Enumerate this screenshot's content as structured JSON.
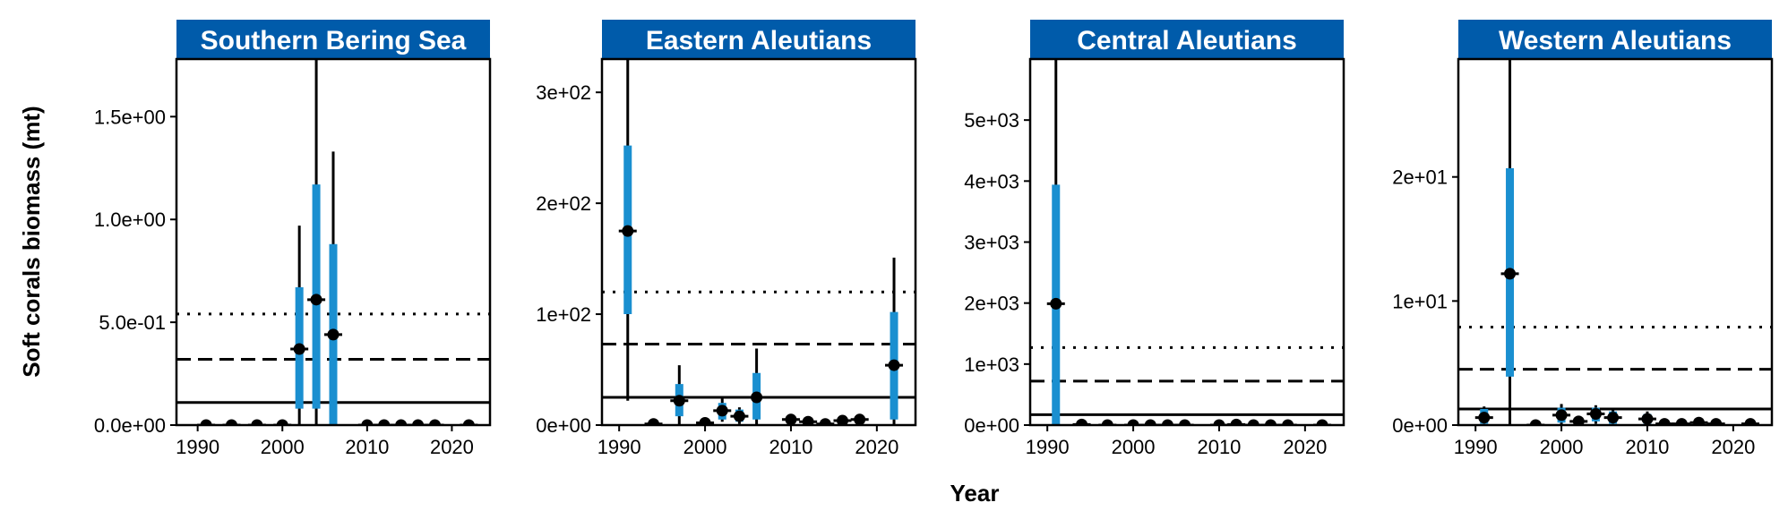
{
  "chart_data": {
    "type": "errorbar",
    "ylabel": "Soft corals biomass (mt)",
    "xlabel": "Year",
    "colors": {
      "strip": "#005BAA",
      "inner_interval": "#1A8FD0",
      "outer_interval": "#000000",
      "point": "#000000"
    },
    "panels": [
      {
        "title": "Southern Bering Sea",
        "xlim": [
          1987.5,
          2024.5
        ],
        "ylim": [
          0,
          1.78
        ],
        "xticks": [
          1990,
          2000,
          2010,
          2020
        ],
        "yticks": [
          0,
          0.5,
          1.0,
          1.5
        ],
        "ytick_labels": [
          "0.0e+00",
          "5.0e-01",
          "1.0e+00",
          "1.5e+00"
        ],
        "hlines": {
          "solid": 0.11,
          "dashed": 0.32,
          "dotted": 0.54
        },
        "points": [
          {
            "x": 1991,
            "y": 0
          },
          {
            "x": 1994,
            "y": 0
          },
          {
            "x": 1997,
            "y": 0
          },
          {
            "x": 2000,
            "y": 0
          },
          {
            "x": 2002,
            "y": 0.37,
            "inner": [
              0.08,
              0.67
            ],
            "outer": [
              0,
              0.97
            ]
          },
          {
            "x": 2004,
            "y": 0.61,
            "inner": [
              0.08,
              1.17
            ],
            "outer": [
              0,
              1.78
            ]
          },
          {
            "x": 2006,
            "y": 0.44,
            "inner": [
              0.0,
              0.88
            ],
            "outer": [
              0,
              1.33
            ]
          },
          {
            "x": 2010,
            "y": 0
          },
          {
            "x": 2012,
            "y": 0
          },
          {
            "x": 2014,
            "y": 0
          },
          {
            "x": 2016,
            "y": 0
          },
          {
            "x": 2018,
            "y": 0
          },
          {
            "x": 2022,
            "y": 0
          }
        ]
      },
      {
        "title": "Eastern Aleutians",
        "xlim": [
          1988,
          2024.5
        ],
        "ylim": [
          0,
          330
        ],
        "xticks": [
          1990,
          2000,
          2010,
          2020
        ],
        "yticks": [
          0,
          100,
          200,
          300
        ],
        "ytick_labels": [
          "0e+00",
          "1e+02",
          "2e+02",
          "3e+02"
        ],
        "hlines": {
          "solid": 25,
          "dashed": 73,
          "dotted": 120
        },
        "points": [
          {
            "x": 1991,
            "y": 175,
            "inner": [
              100,
              252
            ],
            "outer": [
              22,
              330
            ]
          },
          {
            "x": 1994,
            "y": 1
          },
          {
            "x": 1997,
            "y": 22,
            "inner": [
              8,
              37
            ],
            "outer": [
              0,
              54
            ]
          },
          {
            "x": 2000,
            "y": 2
          },
          {
            "x": 2002,
            "y": 13,
            "inner": [
              5,
              20
            ],
            "outer": [
              3,
              24
            ]
          },
          {
            "x": 2004,
            "y": 8,
            "inner": [
              3,
              14
            ],
            "outer": [
              1,
              16
            ]
          },
          {
            "x": 2006,
            "y": 25,
            "inner": [
              5,
              47
            ],
            "outer": [
              0,
              69
            ]
          },
          {
            "x": 2010,
            "y": 5
          },
          {
            "x": 2012,
            "y": 3
          },
          {
            "x": 2014,
            "y": 1
          },
          {
            "x": 2016,
            "y": 4
          },
          {
            "x": 2018,
            "y": 5
          },
          {
            "x": 2022,
            "y": 54,
            "inner": [
              5,
              102
            ],
            "outer": [
              0,
              151
            ]
          }
        ]
      },
      {
        "title": "Central Aleutians",
        "xlim": [
          1988,
          2024.5
        ],
        "ylim": [
          0,
          6000
        ],
        "xticks": [
          1990,
          2000,
          2010,
          2020
        ],
        "yticks": [
          0,
          1000,
          2000,
          3000,
          4000,
          5000
        ],
        "ytick_labels": [
          "0e+00",
          "1e+03",
          "2e+03",
          "3e+03",
          "4e+03",
          "5e+03"
        ],
        "hlines": {
          "solid": 170,
          "dashed": 720,
          "dotted": 1270
        },
        "points": [
          {
            "x": 1991,
            "y": 1990,
            "inner": [
              0,
              3940
            ],
            "outer": [
              0,
              6000
            ]
          },
          {
            "x": 1994,
            "y": 10
          },
          {
            "x": 1997,
            "y": 0
          },
          {
            "x": 2000,
            "y": 0
          },
          {
            "x": 2002,
            "y": 0
          },
          {
            "x": 2004,
            "y": 0
          },
          {
            "x": 2006,
            "y": 0
          },
          {
            "x": 2010,
            "y": 0
          },
          {
            "x": 2012,
            "y": 10
          },
          {
            "x": 2014,
            "y": 0
          },
          {
            "x": 2016,
            "y": 0
          },
          {
            "x": 2018,
            "y": 0
          },
          {
            "x": 2022,
            "y": 0
          }
        ]
      },
      {
        "title": "Western Aleutians",
        "xlim": [
          1988,
          2024.5
        ],
        "ylim": [
          0,
          29.5
        ],
        "xticks": [
          1990,
          2000,
          2010,
          2020
        ],
        "yticks": [
          0,
          10,
          20
        ],
        "ytick_labels": [
          "0e+00",
          "1e+01",
          "2e+01"
        ],
        "hlines": {
          "solid": 1.3,
          "dashed": 4.5,
          "dotted": 7.9
        },
        "points": [
          {
            "x": 1991,
            "y": 0.6,
            "inner": [
              0.1,
              1.3
            ],
            "outer": [
              0,
              1.5
            ]
          },
          {
            "x": 1994,
            "y": 12.2,
            "inner": [
              3.9,
              20.7
            ],
            "outer": [
              0,
              29.5
            ]
          },
          {
            "x": 1997,
            "y": 0
          },
          {
            "x": 2000,
            "y": 0.8,
            "inner": [
              0.2,
              1.4
            ],
            "outer": [
              0,
              1.7
            ]
          },
          {
            "x": 2002,
            "y": 0.3
          },
          {
            "x": 2004,
            "y": 0.9,
            "inner": [
              0.3,
              1.4
            ],
            "outer": [
              0.1,
              1.6
            ]
          },
          {
            "x": 2006,
            "y": 0.6,
            "inner": [
              0.1,
              1.1
            ],
            "outer": [
              0,
              1.3
            ]
          },
          {
            "x": 2010,
            "y": 0.5,
            "inner": [
              0.1,
              0.9
            ],
            "outer": [
              0,
              1.1
            ]
          },
          {
            "x": 2012,
            "y": 0.1
          },
          {
            "x": 2014,
            "y": 0.1
          },
          {
            "x": 2016,
            "y": 0.2
          },
          {
            "x": 2018,
            "y": 0.1
          },
          {
            "x": 2022,
            "y": 0.1
          }
        ]
      }
    ]
  }
}
